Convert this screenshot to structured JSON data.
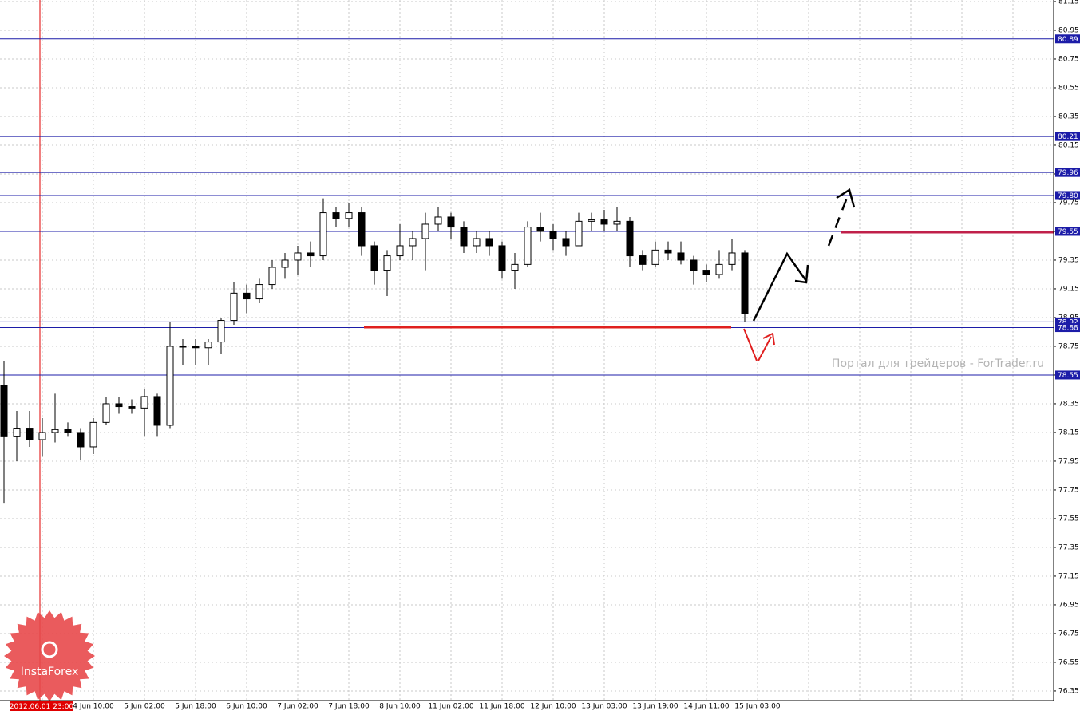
{
  "chart_data": {
    "type": "candlestick",
    "categories": [
      null,
      null,
      null,
      null,
      null,
      null,
      null,
      "4 Jun 10:00",
      null,
      null,
      null,
      "5 Jun 02:00",
      null,
      null,
      null,
      "5 Jun 18:00",
      null,
      null,
      null,
      "6 Jun 10:00",
      null,
      null,
      null,
      "7 Jun 02:00",
      null,
      null,
      null,
      "7 Jun 18:00",
      null,
      null,
      null,
      "8 Jun 10:00",
      null,
      null,
      null,
      "11 Jun 02:00",
      null,
      null,
      null,
      "11 Jun 18:00",
      null,
      null,
      null,
      "12 Jun 10:00",
      null,
      null,
      null,
      "13 Jun 03:00",
      null,
      null,
      null,
      "13 Jun 19:00",
      null,
      null,
      null,
      "14 Jun 11:00",
      null,
      null,
      null,
      "15 Jun 03:00"
    ],
    "open": [
      78.48,
      78.12,
      78.18,
      78.1,
      78.15,
      78.17,
      78.15,
      78.05,
      78.22,
      78.35,
      78.33,
      78.32,
      78.4,
      78.2,
      78.75,
      78.75,
      78.74,
      78.78,
      78.93,
      79.12,
      79.08,
      79.18,
      79.3,
      79.35,
      79.4,
      79.38,
      79.68,
      79.64,
      79.68,
      79.45,
      79.28,
      79.38,
      79.45,
      79.5,
      79.6,
      79.65,
      79.58,
      79.45,
      79.5,
      79.45,
      79.28,
      79.32,
      79.58,
      79.55,
      79.5,
      79.45,
      79.62,
      79.63,
      79.6,
      79.62,
      79.38,
      79.32,
      79.42,
      79.4,
      79.35,
      79.28,
      79.25,
      79.32,
      79.4,
      null
    ],
    "high": [
      78.65,
      78.3,
      78.3,
      78.25,
      78.42,
      78.22,
      78.18,
      78.25,
      78.4,
      78.4,
      78.38,
      78.45,
      78.42,
      78.92,
      78.8,
      78.8,
      78.8,
      78.95,
      79.2,
      79.18,
      79.22,
      79.35,
      79.4,
      79.45,
      79.48,
      79.78,
      79.72,
      79.75,
      79.72,
      79.48,
      79.42,
      79.6,
      79.55,
      79.68,
      79.72,
      79.68,
      79.62,
      79.55,
      79.55,
      79.48,
      79.4,
      79.62,
      79.68,
      79.6,
      79.55,
      79.68,
      79.68,
      79.7,
      79.72,
      79.65,
      79.42,
      79.48,
      79.48,
      79.48,
      79.38,
      79.32,
      79.42,
      79.5,
      79.42,
      null
    ],
    "low": [
      77.66,
      77.95,
      78.05,
      77.98,
      78.08,
      78.12,
      77.96,
      78.0,
      78.2,
      78.28,
      78.28,
      78.12,
      78.12,
      78.18,
      78.62,
      78.62,
      78.62,
      78.7,
      78.9,
      78.98,
      79.05,
      79.15,
      79.22,
      79.25,
      79.3,
      79.35,
      79.58,
      79.58,
      79.38,
      79.18,
      79.1,
      79.35,
      79.35,
      79.28,
      79.55,
      79.5,
      79.4,
      79.4,
      79.38,
      79.22,
      79.15,
      79.3,
      79.48,
      79.42,
      79.38,
      79.45,
      79.55,
      79.55,
      79.55,
      79.3,
      79.28,
      79.3,
      79.35,
      79.32,
      79.18,
      79.2,
      79.22,
      79.28,
      78.92,
      null
    ],
    "close": [
      78.12,
      78.18,
      78.1,
      78.15,
      78.17,
      78.15,
      78.05,
      78.22,
      78.35,
      78.33,
      78.32,
      78.4,
      78.2,
      78.75,
      78.75,
      78.74,
      78.78,
      78.93,
      79.12,
      79.08,
      79.18,
      79.3,
      79.35,
      79.4,
      79.38,
      79.68,
      79.64,
      79.68,
      79.45,
      79.28,
      79.38,
      79.45,
      79.5,
      79.6,
      79.65,
      79.58,
      79.45,
      79.5,
      79.45,
      79.28,
      79.32,
      79.58,
      79.55,
      79.5,
      79.45,
      79.62,
      79.63,
      79.6,
      79.62,
      79.38,
      79.32,
      79.42,
      79.4,
      79.35,
      79.28,
      79.25,
      79.32,
      79.4,
      78.98,
      null
    ],
    "ylim": [
      76.283,
      81.161
    ],
    "yticks": [
      81.15,
      80.95,
      80.75,
      80.55,
      80.35,
      80.15,
      79.95,
      79.75,
      79.55,
      79.35,
      79.15,
      78.95,
      78.75,
      78.55,
      78.35,
      78.15,
      77.95,
      77.75,
      77.55,
      77.35,
      77.15,
      76.95,
      76.75,
      76.55,
      76.35
    ],
    "grid": true,
    "levels": [
      80.89,
      80.21,
      79.96,
      {
        "value": 79.8,
        "label": "79.80"
      },
      79.55,
      78.92,
      78.88,
      78.55
    ],
    "level_color": "#1c1ca8",
    "up_color": "#ffffff",
    "down_color": "#000000",
    "cursor_label": "2012.06.01 23:00",
    "cursor_index": 3,
    "watermark": "Портал для трейдеров - ForTrader.ru",
    "logo_text": "InstaForex"
  }
}
